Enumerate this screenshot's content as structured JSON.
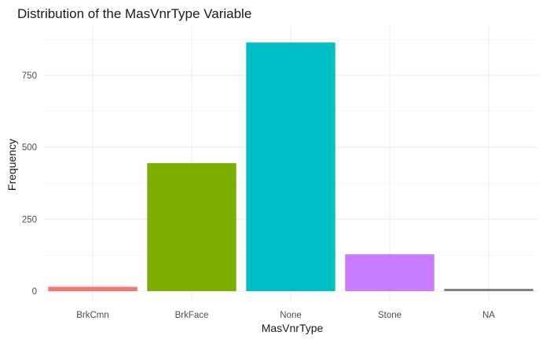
{
  "chart_data": {
    "type": "bar",
    "title": "Distribution of the MasVnrType Variable",
    "xlabel": "MasVnrType",
    "ylabel": "Frequency",
    "categories": [
      "BrkCmn",
      "BrkFace",
      "None",
      "Stone",
      "NA"
    ],
    "values": [
      15,
      445,
      864,
      128,
      8
    ],
    "colors": [
      "#F8766D",
      "#7CAE00",
      "#00BFC4",
      "#C77CFF",
      "#7F7F7F"
    ],
    "ylim": [
      0,
      910
    ],
    "yticks": [
      0,
      250,
      500,
      750
    ],
    "grid": true,
    "legend": "none"
  }
}
